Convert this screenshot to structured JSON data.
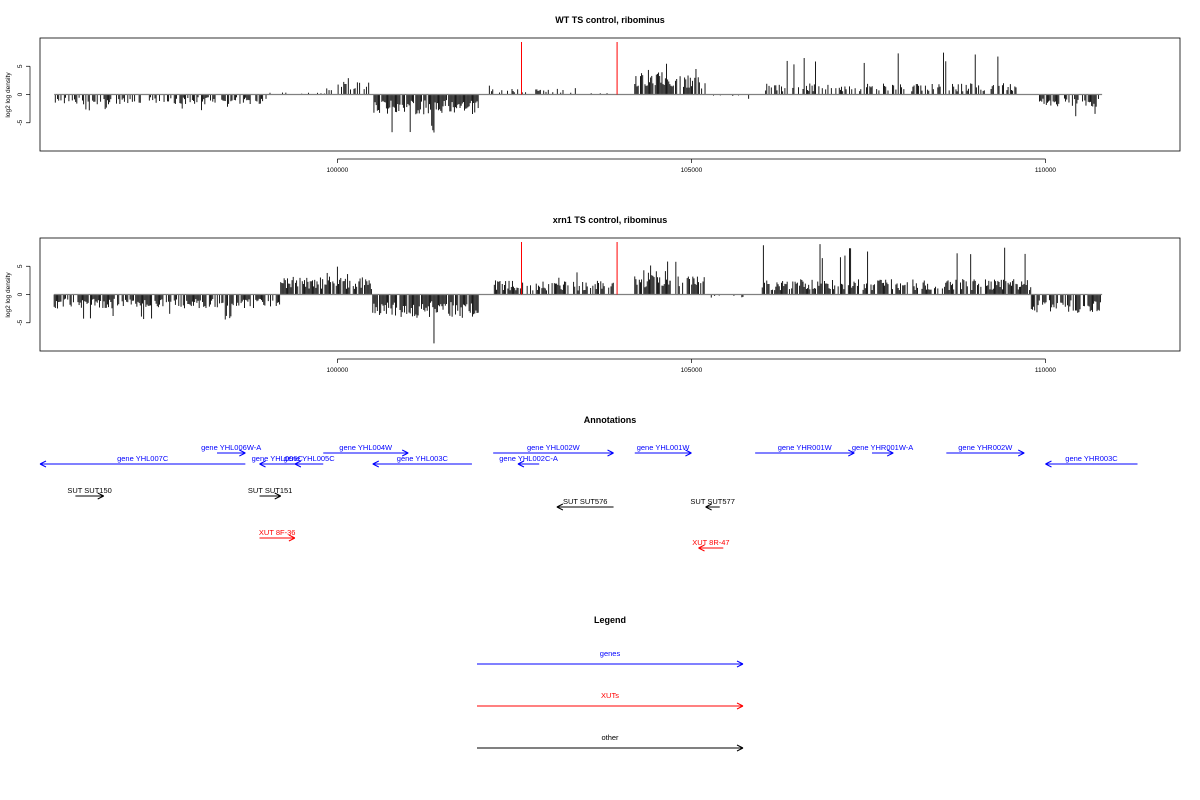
{
  "colors": {
    "gene": "#0000ff",
    "xut": "#ff0000",
    "other": "#000000",
    "signal": "#000000",
    "marker": "#ff0000",
    "baseline": "#808080"
  },
  "chart_data": [
    {
      "type": "bar",
      "title": "WT TS control, ribominus",
      "ylabel": "log2 log density",
      "xlim": [
        95800,
        111900
      ],
      "ylim": [
        -10,
        10
      ],
      "x_ticks": [
        100000,
        105000,
        110000
      ],
      "y_ticks": [
        -5,
        0,
        5
      ],
      "track_range": [
        96000,
        110800
      ],
      "markers_x": [
        102600,
        103950
      ],
      "segments": [
        {
          "x0": 96000,
          "x1": 99000,
          "dir": -1,
          "amp": 1.4,
          "max": 3.0,
          "density": 0.55
        },
        {
          "x0": 99000,
          "x1": 99850,
          "dir": 1,
          "amp": 0.3,
          "max": 1.2,
          "density": 0.2
        },
        {
          "x0": 99850,
          "x1": 100500,
          "dir": 1,
          "amp": 1.8,
          "max": 3.2,
          "density": 0.45
        },
        {
          "x0": 100500,
          "x1": 102000,
          "dir": -1,
          "amp": 2.8,
          "max": 7.5,
          "density": 0.85
        },
        {
          "x0": 102050,
          "x1": 103200,
          "dir": 1,
          "amp": 0.8,
          "max": 2.0,
          "density": 0.3
        },
        {
          "x0": 103200,
          "x1": 103900,
          "dir": 1,
          "amp": 0.6,
          "max": 1.5,
          "density": 0.2
        },
        {
          "x0": 104200,
          "x1": 104600,
          "dir": 1,
          "amp": 3.2,
          "max": 5.5,
          "density": 0.95
        },
        {
          "x0": 104600,
          "x1": 105200,
          "dir": 1,
          "amp": 2.8,
          "max": 5.8,
          "density": 0.6
        },
        {
          "x0": 105200,
          "x1": 106000,
          "dir": -1,
          "amp": 0.3,
          "max": 0.8,
          "density": 0.1
        },
        {
          "x0": 106000,
          "x1": 109600,
          "dir": 1,
          "amp": 1.6,
          "max": 7.5,
          "density": 0.55
        },
        {
          "x0": 109900,
          "x1": 110800,
          "dir": -1,
          "amp": 1.8,
          "max": 4.8,
          "density": 0.6
        }
      ]
    },
    {
      "type": "bar",
      "title": "xrn1 TS control, ribominus",
      "ylabel": "log2 log density",
      "xlim": [
        95800,
        111900
      ],
      "ylim": [
        -10,
        10
      ],
      "x_ticks": [
        100000,
        105000,
        110000
      ],
      "y_ticks": [
        -5,
        0,
        5
      ],
      "track_range": [
        96000,
        110800
      ],
      "markers_x": [
        102600,
        103950
      ],
      "segments": [
        {
          "x0": 96000,
          "x1": 99200,
          "dir": -1,
          "amp": 2.0,
          "max": 4.5,
          "density": 0.8
        },
        {
          "x0": 99200,
          "x1": 100500,
          "dir": 1,
          "amp": 2.6,
          "max": 5.0,
          "density": 0.85
        },
        {
          "x0": 100500,
          "x1": 102000,
          "dir": -1,
          "amp": 3.4,
          "max": 9.0,
          "density": 0.9
        },
        {
          "x0": 102200,
          "x1": 103900,
          "dir": 1,
          "amp": 2.0,
          "max": 4.0,
          "density": 0.7
        },
        {
          "x0": 104200,
          "x1": 104700,
          "dir": 1,
          "amp": 3.6,
          "max": 6.0,
          "density": 0.9
        },
        {
          "x0": 104700,
          "x1": 105200,
          "dir": 1,
          "amp": 2.6,
          "max": 7.0,
          "density": 0.6
        },
        {
          "x0": 105200,
          "x1": 106000,
          "dir": -1,
          "amp": 0.5,
          "max": 1.2,
          "density": 0.15
        },
        {
          "x0": 106000,
          "x1": 109800,
          "dir": 1,
          "amp": 2.2,
          "max": 9.0,
          "density": 0.75
        },
        {
          "x0": 109800,
          "x1": 110800,
          "dir": -1,
          "amp": 2.6,
          "max": 6.0,
          "density": 0.7
        }
      ]
    }
  ],
  "annotations": {
    "title": "Annotations",
    "xlim": [
      95800,
      111900
    ],
    "features": [
      {
        "label": "gene YHL007C",
        "cls": "gene",
        "dir": -1,
        "x0": 95800,
        "x1": 98700,
        "row": 1
      },
      {
        "label": "gene YHL006W-A",
        "cls": "gene",
        "dir": 1,
        "x0": 98300,
        "x1": 98700,
        "row": 0
      },
      {
        "label": "gene YHL006C",
        "cls": "gene",
        "dir": -1,
        "x0": 98900,
        "x1": 99400,
        "row": 1
      },
      {
        "label": "gene YHL005C",
        "cls": "gene",
        "dir": -1,
        "x0": 99400,
        "x1": 99800,
        "row": 1
      },
      {
        "label": "gene YHL004W",
        "cls": "gene",
        "dir": 1,
        "x0": 99800,
        "x1": 101000,
        "row": 0
      },
      {
        "label": "gene YHL003C",
        "cls": "gene",
        "dir": -1,
        "x0": 100500,
        "x1": 101900,
        "row": 1
      },
      {
        "label": "gene YHL002W",
        "cls": "gene",
        "dir": 1,
        "x0": 102200,
        "x1": 103900,
        "row": 0
      },
      {
        "label": "gene YHL002C-A",
        "cls": "gene",
        "dir": -1,
        "x0": 102550,
        "x1": 102850,
        "row": 1
      },
      {
        "label": "gene YHL001W",
        "cls": "gene",
        "dir": 1,
        "x0": 104200,
        "x1": 105000,
        "row": 0
      },
      {
        "label": "gene YHR001W",
        "cls": "gene",
        "dir": 1,
        "x0": 105900,
        "x1": 107300,
        "row": 0
      },
      {
        "label": "gene YHR001W-A",
        "cls": "gene",
        "dir": 1,
        "x0": 107550,
        "x1": 107850,
        "row": 0
      },
      {
        "label": "gene YHR002W",
        "cls": "gene",
        "dir": 1,
        "x0": 108600,
        "x1": 109700,
        "row": 0
      },
      {
        "label": "gene YHR003C",
        "cls": "gene",
        "dir": -1,
        "x0": 110000,
        "x1": 111300,
        "row": 1
      },
      {
        "label": "SUT SUT150",
        "cls": "other",
        "dir": 1,
        "x0": 96300,
        "x1": 96700,
        "row": 2
      },
      {
        "label": "SUT SUT151",
        "cls": "other",
        "dir": 1,
        "x0": 98900,
        "x1": 99200,
        "row": 2
      },
      {
        "label": "SUT SUT576",
        "cls": "other",
        "dir": -1,
        "x0": 103100,
        "x1": 103900,
        "row": 3
      },
      {
        "label": "SUT SUT577",
        "cls": "other",
        "dir": -1,
        "x0": 105200,
        "x1": 105400,
        "row": 3
      },
      {
        "label": "XUT 8F-36",
        "cls": "xut",
        "dir": 1,
        "x0": 98900,
        "x1": 99400,
        "row": 4
      },
      {
        "label": "XUT 8R-47",
        "cls": "xut",
        "dir": -1,
        "x0": 105100,
        "x1": 105450,
        "row": 5
      }
    ]
  },
  "legend": {
    "title": "Legend",
    "items": [
      {
        "label": "genes",
        "cls": "gene"
      },
      {
        "label": "XUTs",
        "cls": "xut"
      },
      {
        "label": "other",
        "cls": "other"
      }
    ]
  }
}
